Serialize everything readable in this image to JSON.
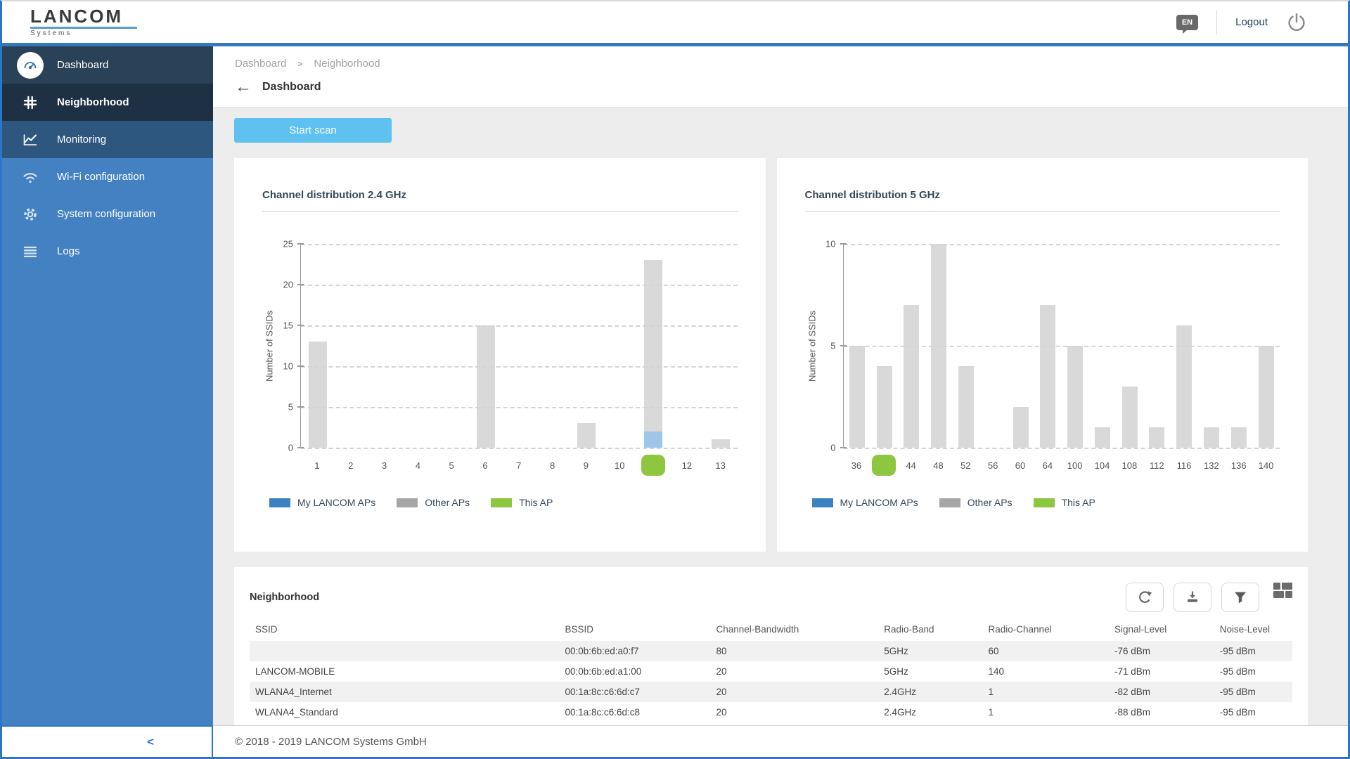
{
  "topbar": {
    "logo_main": "LANCOM",
    "logo_sub": "Systems",
    "lang_badge": "EN",
    "logout_label": "Logout"
  },
  "sidebar": {
    "items": [
      {
        "label": "Dashboard",
        "icon": "gauge-icon",
        "state": "visited"
      },
      {
        "label": "Neighborhood",
        "icon": "channel-grid-icon",
        "state": "active"
      },
      {
        "label": "Monitoring",
        "icon": "line-chart-icon",
        "state": "highlight"
      },
      {
        "label": "Wi-Fi configuration",
        "icon": "wifi-icon",
        "state": "default"
      },
      {
        "label": "System configuration",
        "icon": "gear-icon",
        "state": "default"
      },
      {
        "label": "Logs",
        "icon": "list-icon",
        "state": "default"
      }
    ],
    "collapse_icon": "<"
  },
  "breadcrumb": {
    "items": [
      "Dashboard",
      "Neighborhood"
    ],
    "sep": ">",
    "back_label": "Dashboard"
  },
  "actions": {
    "start_scan_label": "Start scan"
  },
  "chart_data": [
    {
      "type": "bar",
      "title": "Channel distribution 2.4 GHz",
      "ylabel": "Number of SSIDs",
      "ylim": [
        0,
        25
      ],
      "yticks": [
        0,
        5,
        10,
        15,
        20,
        25
      ],
      "grid": "dashed",
      "categories": [
        "1",
        "2",
        "3",
        "4",
        "5",
        "6",
        "7",
        "8",
        "9",
        "10",
        "11",
        "12",
        "13"
      ],
      "this_ap_channel": "11",
      "series": [
        {
          "name": "My LANCOM APs",
          "color": "#9fc5e8",
          "values": [
            0,
            0,
            0,
            0,
            0,
            0,
            0,
            0,
            0,
            0,
            2,
            0,
            0
          ]
        },
        {
          "name": "Other APs",
          "color": "#d9d9d9",
          "values": [
            13,
            0,
            0,
            0,
            0,
            15,
            0,
            0,
            3,
            0,
            21,
            0,
            1
          ]
        }
      ],
      "legend": [
        {
          "label": "My LANCOM APs",
          "color": "#3d80c4"
        },
        {
          "label": "Other APs",
          "color": "#a6a6a6"
        },
        {
          "label": "This AP",
          "color": "#8dc63f"
        }
      ],
      "legend_position": "bottom"
    },
    {
      "type": "bar",
      "title": "Channel distribution 5 GHz",
      "ylabel": "Number of SSIDs",
      "ylim": [
        0,
        10
      ],
      "yticks": [
        0,
        5,
        10
      ],
      "grid": "dashed",
      "categories": [
        "36",
        "40",
        "44",
        "48",
        "52",
        "56",
        "60",
        "64",
        "100",
        "104",
        "108",
        "112",
        "116",
        "132",
        "136",
        "140"
      ],
      "this_ap_channel": "40",
      "series": [
        {
          "name": "My LANCOM APs",
          "color": "#9fc5e8",
          "values": [
            0,
            0,
            0,
            0,
            0,
            0,
            0,
            0,
            0,
            0,
            0,
            0,
            0,
            0,
            0,
            0
          ]
        },
        {
          "name": "Other APs",
          "color": "#d9d9d9",
          "values": [
            5,
            4,
            7,
            10,
            4,
            0,
            2,
            7,
            5,
            1,
            3,
            1,
            6,
            1,
            1,
            5
          ]
        }
      ],
      "legend": [
        {
          "label": "My LANCOM APs",
          "color": "#3d80c4"
        },
        {
          "label": "Other APs",
          "color": "#a6a6a6"
        },
        {
          "label": "This AP",
          "color": "#8dc63f"
        }
      ],
      "legend_position": "bottom"
    }
  ],
  "table": {
    "title": "Neighborhood",
    "toolbar_icons": [
      "refresh-icon",
      "download-icon",
      "filter-icon",
      "grid-view-icon"
    ],
    "columns": [
      "SSID",
      "BSSID",
      "Channel-Bandwidth",
      "Radio-Band",
      "Radio-Channel",
      "Signal-Level",
      "Noise-Level"
    ],
    "col_widths_pct": [
      29.7,
      14.5,
      16.1,
      10.0,
      12.1,
      10.1,
      7.5
    ],
    "rows": [
      [
        "",
        "00:0b:6b:ed:a0:f7",
        "80",
        "5GHz",
        "60",
        "-76 dBm",
        "-95 dBm"
      ],
      [
        "LANCOM-MOBILE",
        "00:0b:6b:ed:a1:00",
        "20",
        "5GHz",
        "140",
        "-71 dBm",
        "-95 dBm"
      ],
      [
        "WLANA4_Internet",
        "00:1a:8c:c6:6d:c7",
        "20",
        "2.4GHz",
        "1",
        "-82 dBm",
        "-95 dBm"
      ],
      [
        "WLANA4_Standard",
        "00:1a:8c:c6:6d:c8",
        "20",
        "2.4GHz",
        "1",
        "-88 dBm",
        "-95 dBm"
      ]
    ]
  },
  "footer": {
    "copyright": "© 2018 - 2019 LANCOM Systems GmbH"
  },
  "colors": {
    "accent_blue": "#2b77c5",
    "header_border": "#3579bd",
    "sidebar_base": "#4381c3",
    "sidebar_dashboard": "#2a4257",
    "sidebar_active": "#1e3044",
    "sidebar_monitoring": "#2e577f",
    "content_bg": "#ededed",
    "start_scan": "#5fc1f0",
    "bar_gray": "#d9d9d9",
    "bar_blue": "#9fc5e8",
    "this_ap_green": "#8dc63f",
    "row_stripe": "#f1f1f1"
  }
}
